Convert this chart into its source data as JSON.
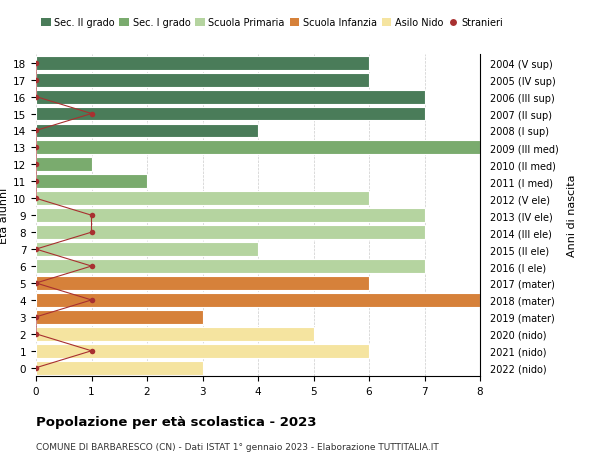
{
  "ages": [
    18,
    17,
    16,
    15,
    14,
    13,
    12,
    11,
    10,
    9,
    8,
    7,
    6,
    5,
    4,
    3,
    2,
    1,
    0
  ],
  "years": [
    "2004 (V sup)",
    "2005 (IV sup)",
    "2006 (III sup)",
    "2007 (II sup)",
    "2008 (I sup)",
    "2009 (III med)",
    "2010 (II med)",
    "2011 (I med)",
    "2012 (V ele)",
    "2013 (IV ele)",
    "2014 (III ele)",
    "2015 (II ele)",
    "2016 (I ele)",
    "2017 (mater)",
    "2018 (mater)",
    "2019 (mater)",
    "2020 (nido)",
    "2021 (nido)",
    "2022 (nido)"
  ],
  "bar_values": [
    6,
    6,
    7,
    7,
    4,
    8,
    1,
    2,
    6,
    7,
    7,
    4,
    7,
    6,
    8,
    3,
    5,
    6,
    3
  ],
  "bar_colors": [
    "#4a7c59",
    "#4a7c59",
    "#4a7c59",
    "#4a7c59",
    "#4a7c59",
    "#7aab6e",
    "#7aab6e",
    "#7aab6e",
    "#b5d4a0",
    "#b5d4a0",
    "#b5d4a0",
    "#b5d4a0",
    "#b5d4a0",
    "#d6813a",
    "#d6813a",
    "#d6813a",
    "#f5e4a0",
    "#f5e4a0",
    "#f5e4a0"
  ],
  "stranieri_x": [
    0,
    0,
    0,
    1,
    0,
    0,
    0,
    0,
    0,
    1,
    1,
    0,
    1,
    0,
    1,
    0,
    0,
    1,
    0
  ],
  "legend_labels": [
    "Sec. II grado",
    "Sec. I grado",
    "Scuola Primaria",
    "Scuola Infanzia",
    "Asilo Nido",
    "Stranieri"
  ],
  "legend_colors": [
    "#4a7c59",
    "#7aab6e",
    "#b5d4a0",
    "#d6813a",
    "#f5e4a0",
    "#a83030"
  ],
  "ylabel_left": "Età alunni",
  "ylabel_right": "Anni di nascita",
  "title": "Popolazione per età scolastica - 2023",
  "subtitle": "COMUNE DI BARBARESCO (CN) - Dati ISTAT 1° gennaio 2023 - Elaborazione TUTTITALIA.IT",
  "xlim": [
    0,
    8
  ],
  "background_color": "#ffffff",
  "stranieri_dot_color": "#a83030",
  "stranieri_line_color": "#a83030"
}
